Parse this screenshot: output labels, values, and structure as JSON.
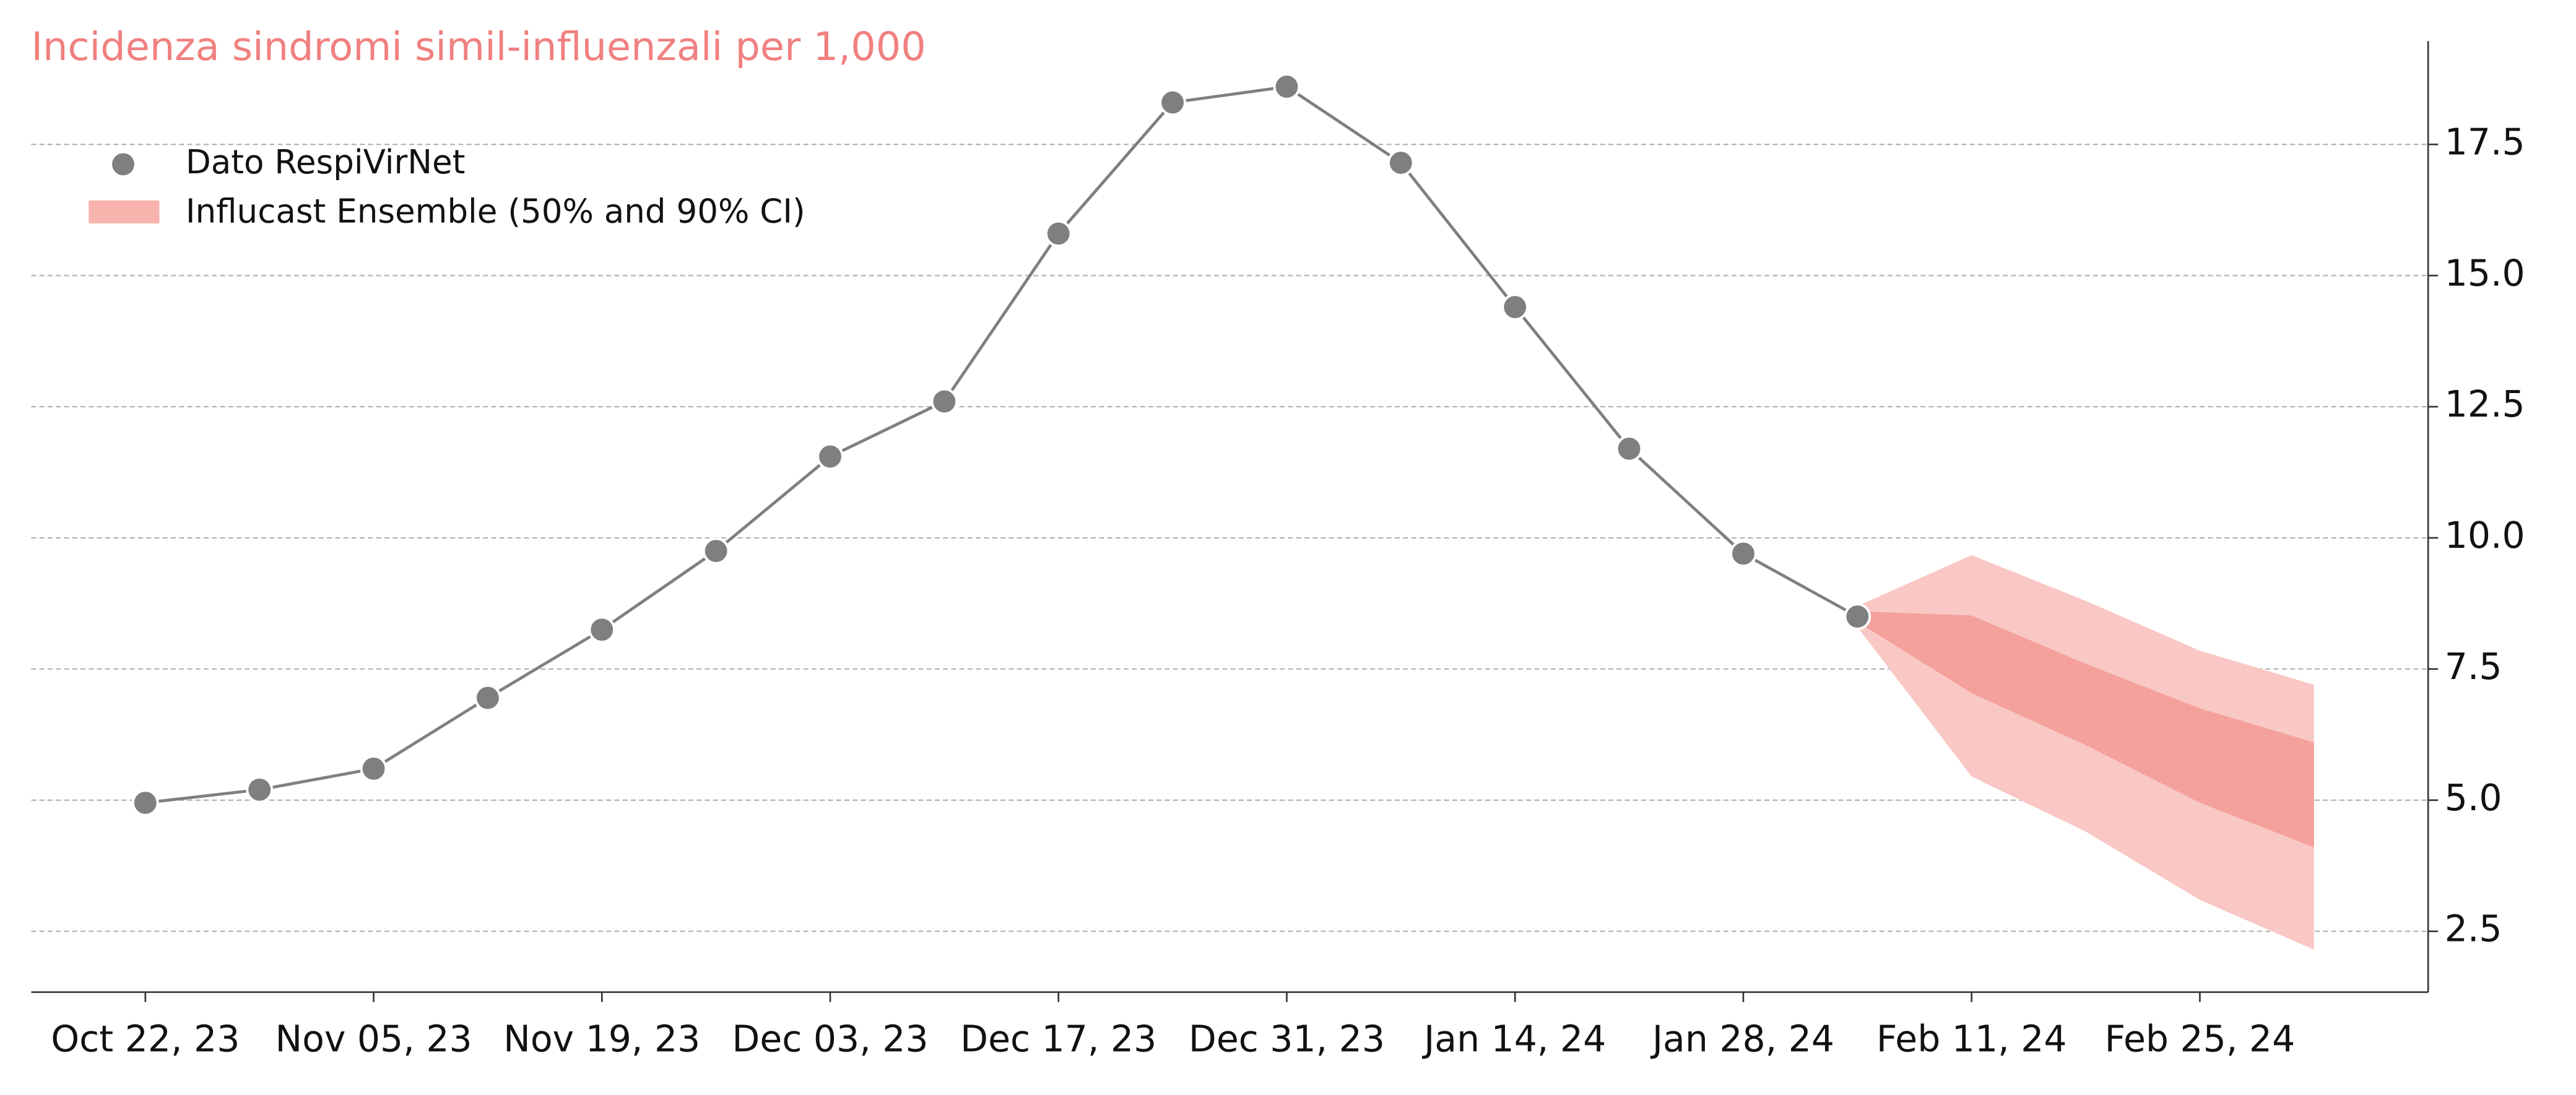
{
  "chart_data": {
    "type": "line",
    "title": "Incidenza sindromi simil-influenzali per 1,000",
    "x": [
      "2023-10-22",
      "2023-10-29",
      "2023-11-05",
      "2023-11-12",
      "2023-11-19",
      "2023-11-26",
      "2023-12-03",
      "2023-12-10",
      "2023-12-17",
      "2023-12-24",
      "2023-12-31",
      "2024-01-07",
      "2024-01-14",
      "2024-01-21",
      "2024-01-28",
      "2024-02-04"
    ],
    "series": [
      {
        "name": "Dato RespiVirNet",
        "color": "#7f7f7f",
        "values": [
          4.95,
          5.2,
          5.6,
          6.95,
          8.25,
          9.75,
          11.55,
          12.6,
          15.8,
          18.3,
          18.6,
          17.15,
          14.4,
          11.7,
          9.7,
          8.5
        ]
      }
    ],
    "forecast": {
      "name": "Influcast Ensemble (50% and 90% CI)",
      "color": "#f9b3ad",
      "color_90": "#f9c8c4",
      "color_50": "#f4a19b",
      "x": [
        "2024-02-04",
        "2024-02-11",
        "2024-02-18",
        "2024-02-25",
        "2024-03-03"
      ],
      "lower_90": [
        8.3,
        5.45,
        4.4,
        3.1,
        2.15
      ],
      "upper_90": [
        8.7,
        9.67,
        8.8,
        7.85,
        7.2
      ],
      "lower_50": [
        8.4,
        7.04,
        6.05,
        4.95,
        4.1
      ],
      "upper_50": [
        8.6,
        8.52,
        7.6,
        6.75,
        6.1
      ]
    },
    "xlim": [
      "2023-10-15",
      "2024-03-10"
    ],
    "xticks": [
      {
        "value": "2023-10-22",
        "label": "Oct 22, 23"
      },
      {
        "value": "2023-11-05",
        "label": "Nov 05, 23"
      },
      {
        "value": "2023-11-19",
        "label": "Nov 19, 23"
      },
      {
        "value": "2023-12-03",
        "label": "Dec 03, 23"
      },
      {
        "value": "2023-12-17",
        "label": "Dec 17, 23"
      },
      {
        "value": "2023-12-31",
        "label": "Dec 31, 23"
      },
      {
        "value": "2024-01-14",
        "label": "Jan 14, 24"
      },
      {
        "value": "2024-01-28",
        "label": "Jan 28, 24"
      },
      {
        "value": "2024-02-11",
        "label": "Feb 11, 24"
      },
      {
        "value": "2024-02-25",
        "label": "Feb 25, 24"
      }
    ],
    "ylim": [
      1.34,
      19.47
    ],
    "yticks": [
      {
        "value": 2.5,
        "label": "2.5"
      },
      {
        "value": 5,
        "label": "5.0"
      },
      {
        "value": 7.5,
        "label": "7.5"
      },
      {
        "value": 10,
        "label": "10.0"
      },
      {
        "value": 12.5,
        "label": "12.5"
      },
      {
        "value": 15,
        "label": "15.0"
      },
      {
        "value": 17.5,
        "label": "17.5"
      }
    ],
    "grid": true,
    "legend": "upper left"
  }
}
